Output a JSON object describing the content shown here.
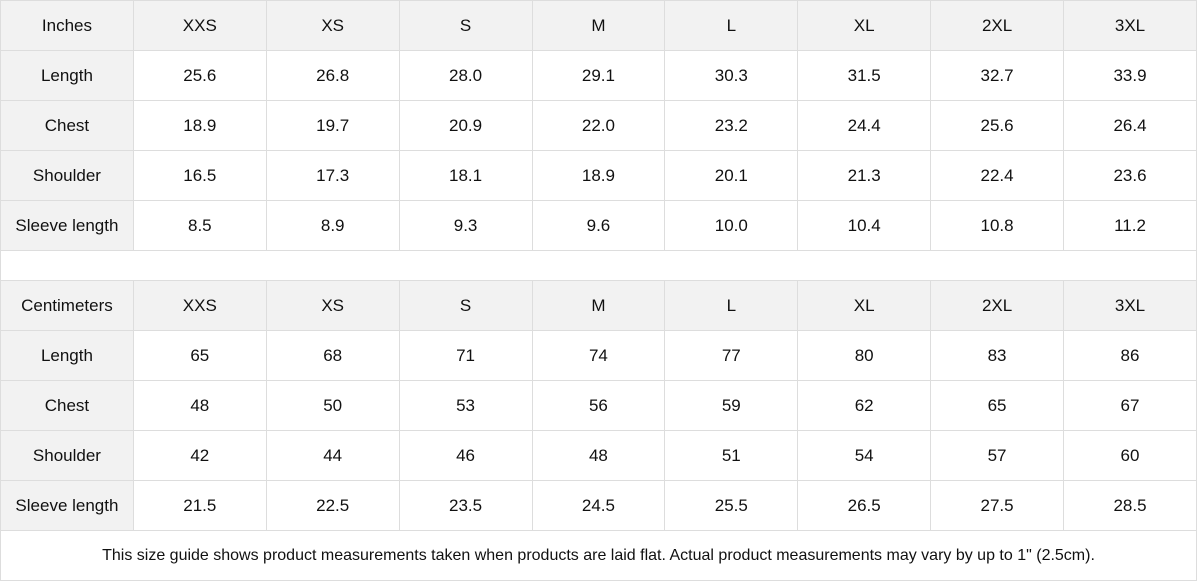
{
  "sizes": [
    "XXS",
    "XS",
    "S",
    "M",
    "L",
    "XL",
    "2XL",
    "3XL"
  ],
  "inches": {
    "unit_label": "Inches",
    "rows": [
      {
        "label": "Length",
        "values": [
          "25.6",
          "26.8",
          "28.0",
          "29.1",
          "30.3",
          "31.5",
          "32.7",
          "33.9"
        ]
      },
      {
        "label": "Chest",
        "values": [
          "18.9",
          "19.7",
          "20.9",
          "22.0",
          "23.2",
          "24.4",
          "25.6",
          "26.4"
        ]
      },
      {
        "label": "Shoulder",
        "values": [
          "16.5",
          "17.3",
          "18.1",
          "18.9",
          "20.1",
          "21.3",
          "22.4",
          "23.6"
        ]
      },
      {
        "label": "Sleeve length",
        "values": [
          "8.5",
          "8.9",
          "9.3",
          "9.6",
          "10.0",
          "10.4",
          "10.8",
          "11.2"
        ]
      }
    ]
  },
  "centimeters": {
    "unit_label": "Centimeters",
    "rows": [
      {
        "label": "Length",
        "values": [
          "65",
          "68",
          "71",
          "74",
          "77",
          "80",
          "83",
          "86"
        ]
      },
      {
        "label": "Chest",
        "values": [
          "48",
          "50",
          "53",
          "56",
          "59",
          "62",
          "65",
          "67"
        ]
      },
      {
        "label": "Shoulder",
        "values": [
          "42",
          "44",
          "46",
          "48",
          "51",
          "54",
          "57",
          "60"
        ]
      },
      {
        "label": "Sleeve length",
        "values": [
          "21.5",
          "22.5",
          "23.5",
          "24.5",
          "25.5",
          "26.5",
          "27.5",
          "28.5"
        ]
      }
    ]
  },
  "footnote": "This size guide shows product measurements taken when products are laid flat.  Actual product measurements may vary by up to 1\" (2.5cm).",
  "colors": {
    "header_bg": "#f2f2f2",
    "border": "#dddddd"
  }
}
